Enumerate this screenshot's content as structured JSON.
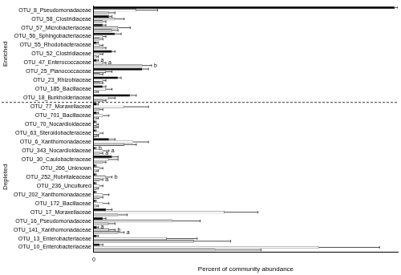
{
  "chart_data": {
    "type": "bar",
    "orientation": "horizontal",
    "x_label": "Percent of community abundance",
    "categories": [
      "OTU_8_Pseudomonadaceae",
      "OTU_58_Clostridiaceae",
      "OTU_57_Microbacteriaceae",
      "OTU_56_Sphingobacteriaceae",
      "OTU_55_Rhodobacteraceae",
      "OTU_52_Clostridiaceae",
      "OTU_47_Enterococcaceae",
      "OTU_25_Planococcaceae",
      "OTU_23_Rhizobiaceae",
      "OTU_185_Bacillaceae",
      "OTU_18_Burkholderiaceae",
      "OTU_77_Moraxellaceae",
      "OTU_701_Bacillaceae",
      "OTU_70_Nocardioidaceae",
      "OTU_63_Steroidobacteraceae",
      "OTU_6_Xanthomonadaceae",
      "OTU_343_Nocardioidaceae",
      "OTU_30_Caulobacteraceae",
      "OTU_266_Unknown",
      "OTU_252_Rubritaleaceae",
      "OTU_236_Uncultured",
      "OTU_202_Xanthomonadaceae",
      "OTU_172_Bacillaceae",
      "OTU_17_Moraxellaceae",
      "OTU_16_Pseudomonadaceae",
      "OTU_141_Xanthomonadaceae",
      "OTU_13_Enterobacteriaceae",
      "OTU_10_Enterobacteriaceae"
    ],
    "series": [
      {
        "color": "#000000",
        "values": [
          9.9,
          0.5,
          0.3,
          0.7,
          0.1,
          0.6,
          0.1,
          1.6,
          0.8,
          0.3,
          1.2,
          0.1,
          0.1,
          0.05,
          0.05,
          0.5,
          0.05,
          0.6,
          0.05,
          0.05,
          0.05,
          0.05,
          0.05,
          0.4,
          0.3,
          0.1,
          0.1,
          0.2
        ],
        "errors": [
          0.1,
          0.1,
          0.1,
          0.2,
          0.05,
          0.1,
          0.05,
          0.2,
          0.1,
          0.1,
          0.2,
          0.05,
          0.05,
          0.03,
          0.03,
          0.2,
          0.03,
          0.2,
          0.03,
          0.03,
          0.03,
          0.03,
          0.03,
          0.2,
          0.1,
          0.05,
          0.05,
          0.1
        ],
        "annotations": [
          null,
          null,
          null,
          null,
          null,
          null,
          "a",
          null,
          null,
          null,
          null,
          null,
          null,
          null,
          null,
          null,
          "b",
          null,
          null,
          null,
          null,
          null,
          null,
          null,
          null,
          "a",
          null,
          null
        ]
      },
      {
        "color": "#ffffff",
        "values": [
          1.4,
          0.7,
          0.8,
          0.3,
          0.2,
          0.2,
          0.3,
          0.4,
          0.3,
          0.4,
          0.5,
          1.0,
          0.3,
          0.1,
          0.2,
          1.3,
          0.3,
          0.5,
          0.2,
          0.4,
          0.2,
          0.3,
          0.3,
          4.3,
          2.6,
          0.5,
          2.4,
          7.4
        ],
        "errors": [
          0.7,
          0.3,
          0.4,
          0.1,
          0.1,
          0.1,
          0.1,
          0.2,
          0.1,
          0.2,
          0.2,
          0.8,
          0.2,
          0.05,
          0.1,
          0.5,
          0.2,
          0.3,
          0.1,
          0.2,
          0.1,
          0.2,
          0.2,
          1.1,
          0.9,
          0.2,
          1.0,
          2.0
        ],
        "annotations": [
          null,
          null,
          null,
          null,
          null,
          null,
          "a",
          null,
          null,
          null,
          null,
          null,
          null,
          null,
          null,
          null,
          "a",
          null,
          null,
          "b",
          null,
          null,
          null,
          null,
          null,
          "b",
          null,
          null
        ]
      },
      {
        "color": "#c8c8c8",
        "values": [
          0.5,
          0.3,
          0.6,
          0.2,
          0.3,
          0.1,
          1.6,
          0.2,
          0.2,
          0.1,
          0.3,
          0.2,
          0.1,
          0.1,
          0.1,
          1.0,
          0.2,
          0.3,
          0.1,
          0.2,
          0.1,
          0.2,
          0.1,
          0.8,
          0.5,
          0.8,
          3.3,
          4.0
        ],
        "errors": [
          0.2,
          0.1,
          0.2,
          0.1,
          0.1,
          0.05,
          0.3,
          0.1,
          0.1,
          0.05,
          0.1,
          0.1,
          0.05,
          0.05,
          0.05,
          0.4,
          0.1,
          0.1,
          0.05,
          0.1,
          0.05,
          0.1,
          0.05,
          0.3,
          0.2,
          0.2,
          1.2,
          1.5
        ],
        "annotations": [
          null,
          null,
          null,
          null,
          null,
          null,
          "b",
          null,
          null,
          null,
          null,
          null,
          null,
          null,
          null,
          null,
          "a",
          null,
          null,
          "a",
          null,
          null,
          null,
          null,
          null,
          "a",
          null,
          null
        ]
      }
    ],
    "groups": [
      {
        "label": "Enriched",
        "start": "OTU_8_Pseudomonadaceae",
        "end": "OTU_18_Burkholderiaceae"
      },
      {
        "label": "Depleted",
        "start": "OTU_77_Moraxellaceae",
        "end": "OTU_10_Enterobacteriaceae"
      }
    ],
    "xlim": [
      0,
      10
    ],
    "xticks": [
      0
    ],
    "grid": false
  }
}
